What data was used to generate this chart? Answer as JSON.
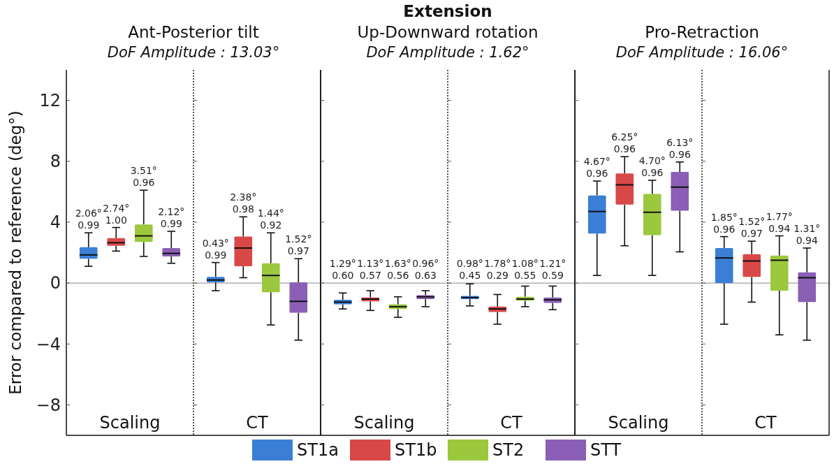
{
  "chart_data": [
    {
      "type": "box",
      "title": "Ant-Posterior tilt",
      "subtitle": "DoF Amplitude : 13.03°",
      "ylabel": "Error compared to reference (deg°)",
      "annotations": [
        "Extension"
      ],
      "categories": [
        "Scaling"
      ],
      "ylim": [
        -10,
        14
      ],
      "yticks": [
        -8,
        -4,
        0,
        4,
        8,
        12
      ],
      "grid": false,
      "legend": "bottom",
      "ref_lines": [
        {
          "axis": "y",
          "value": 0,
          "color": "#a0a0a0"
        }
      ],
      "series": [
        {
          "name": "ST1a",
          "color": "#3a7fd5",
          "value_labels": [
            "2.06°\n0.99"
          ],
          "boxes": [
            {
              "low": 1.1,
              "q1": 1.6,
              "median": 1.85,
              "q3": 2.35,
              "high": 3.3
            }
          ]
        },
        {
          "name": "ST1b",
          "color": "#d94848",
          "value_labels": [
            "2.74°\n1.00"
          ],
          "boxes": [
            {
              "low": 2.1,
              "q1": 2.45,
              "median": 2.65,
              "q3": 2.95,
              "high": 3.65
            }
          ]
        },
        {
          "name": "ST2",
          "color": "#9bc83c",
          "value_labels": [
            "3.51°\n0.96"
          ],
          "boxes": [
            {
              "low": 1.75,
              "q1": 2.7,
              "median": 3.1,
              "q3": 3.85,
              "high": 6.1
            }
          ]
        },
        {
          "name": "STT",
          "color": "#8a5fb5",
          "value_labels": [
            "2.12°\n0.99"
          ],
          "boxes": [
            {
              "low": 1.3,
              "q1": 1.75,
              "median": 1.95,
              "q3": 2.3,
              "high": 3.4
            }
          ]
        }
      ]
    },
    {
      "type": "box",
      "categories": [
        "CT"
      ],
      "ylim": [
        -10,
        14
      ],
      "yticks": [
        -8,
        -4,
        0,
        4,
        8,
        12
      ],
      "tick_labels": "x",
      "grid": false,
      "ref_lines": [
        {
          "axis": "y",
          "value": 0,
          "color": "#a0a0a0"
        }
      ],
      "series": [
        {
          "color": "#3a7fd5",
          "value_labels": [
            "0.43°\n0.99"
          ],
          "boxes": [
            {
              "low": -0.5,
              "q1": 0.05,
              "median": 0.2,
              "q3": 0.4,
              "high": 1.35
            }
          ]
        },
        {
          "color": "#d94848",
          "value_labels": [
            "2.38°\n0.98"
          ],
          "boxes": [
            {
              "low": 0.35,
              "q1": 1.1,
              "median": 2.3,
              "q3": 3.05,
              "high": 4.35
            }
          ]
        },
        {
          "color": "#9bc83c",
          "value_labels": [
            "1.44°\n0.92"
          ],
          "boxes": [
            {
              "low": -2.75,
              "q1": -0.6,
              "median": 0.5,
              "q3": 1.3,
              "high": 3.3
            }
          ]
        },
        {
          "color": "#8a5fb5",
          "value_labels": [
            "1.52°\n0.97"
          ],
          "boxes": [
            {
              "low": -3.75,
              "q1": -1.95,
              "median": -1.2,
              "q3": 0.05,
              "high": 1.6
            }
          ]
        }
      ]
    },
    {
      "type": "box",
      "title": "Up-Downward rotation",
      "subtitle": "DoF Amplitude : 1.62°",
      "categories": [
        "Scaling"
      ],
      "ylim": [
        -10,
        14
      ],
      "yticks": [
        -8,
        -4,
        0,
        4,
        8,
        12
      ],
      "tick_labels": "x",
      "grid": false,
      "ref_lines": [
        {
          "axis": "y",
          "value": 0,
          "color": "#a0a0a0"
        }
      ],
      "series": [
        {
          "color": "#3a7fd5",
          "value_labels": [
            "1.29°\n0.60"
          ],
          "boxes": [
            {
              "low": -1.7,
              "q1": -1.4,
              "median": -1.25,
              "q3": -1.1,
              "high": -0.65
            }
          ]
        },
        {
          "color": "#d94848",
          "value_labels": [
            "1.13°\n0.57"
          ],
          "boxes": [
            {
              "low": -1.8,
              "q1": -1.2,
              "median": -1.05,
              "q3": -0.95,
              "high": -0.5
            }
          ]
        },
        {
          "color": "#9bc83c",
          "value_labels": [
            "1.63°\n0.56"
          ],
          "boxes": [
            {
              "low": -2.25,
              "q1": -1.7,
              "median": -1.55,
              "q3": -1.4,
              "high": -0.9
            }
          ]
        },
        {
          "color": "#8a5fb5",
          "value_labels": [
            "0.96°\n0.63"
          ],
          "boxes": [
            {
              "low": -1.55,
              "q1": -1.05,
              "median": -0.9,
              "q3": -0.8,
              "high": -0.5
            }
          ]
        }
      ]
    },
    {
      "type": "box",
      "categories": [
        "CT"
      ],
      "ylim": [
        -10,
        14
      ],
      "yticks": [
        -8,
        -4,
        0,
        4,
        8,
        12
      ],
      "tick_labels": "x",
      "grid": false,
      "ref_lines": [
        {
          "axis": "y",
          "value": 0,
          "color": "#a0a0a0"
        }
      ],
      "series": [
        {
          "color": "#3a7fd5",
          "value_labels": [
            "0.98°\n0.45"
          ],
          "boxes": [
            {
              "low": -1.5,
              "q1": -1.05,
              "median": -0.95,
              "q3": -0.85,
              "high": -0.05
            }
          ]
        },
        {
          "color": "#d94848",
          "value_labels": [
            "1.78°\n0.29"
          ],
          "boxes": [
            {
              "low": -2.7,
              "q1": -1.9,
              "median": -1.7,
              "q3": -1.55,
              "high": -0.75
            }
          ]
        },
        {
          "color": "#9bc83c",
          "value_labels": [
            "1.08°\n0.55"
          ],
          "boxes": [
            {
              "low": -1.55,
              "q1": -1.15,
              "median": -1.05,
              "q3": -0.9,
              "high": -0.2
            }
          ]
        },
        {
          "color": "#8a5fb5",
          "value_labels": [
            "1.21°\n0.59"
          ],
          "boxes": [
            {
              "low": -1.75,
              "q1": -1.3,
              "median": -1.1,
              "q3": -0.95,
              "high": -0.2
            }
          ]
        }
      ]
    },
    {
      "type": "box",
      "title": "Pro-Retraction",
      "subtitle": "DoF Amplitude : 16.06°",
      "categories": [
        "Scaling"
      ],
      "ylim": [
        -10,
        14
      ],
      "yticks": [
        -8,
        -4,
        0,
        4,
        8,
        12
      ],
      "tick_labels": "x",
      "grid": false,
      "ref_lines": [
        {
          "axis": "y",
          "value": 0,
          "color": "#a0a0a0"
        }
      ],
      "series": [
        {
          "color": "#3a7fd5",
          "value_labels": [
            "4.67°\n0.96"
          ],
          "boxes": [
            {
              "low": 0.5,
              "q1": 3.25,
              "median": 4.7,
              "q3": 5.75,
              "high": 6.7
            }
          ]
        },
        {
          "color": "#d94848",
          "value_labels": [
            "6.25°\n0.96"
          ],
          "boxes": [
            {
              "low": 2.45,
              "q1": 5.15,
              "median": 6.45,
              "q3": 7.2,
              "high": 8.3
            }
          ]
        },
        {
          "color": "#9bc83c",
          "value_labels": [
            "4.70°\n0.96"
          ],
          "boxes": [
            {
              "low": 0.5,
              "q1": 3.15,
              "median": 4.65,
              "q3": 5.85,
              "high": 6.75
            }
          ]
        },
        {
          "color": "#8a5fb5",
          "value_labels": [
            "6.13°\n0.96"
          ],
          "boxes": [
            {
              "low": 2.05,
              "q1": 4.75,
              "median": 6.3,
              "q3": 7.3,
              "high": 7.95
            }
          ]
        }
      ]
    },
    {
      "type": "box",
      "categories": [
        "CT"
      ],
      "ylim": [
        -10,
        14
      ],
      "yticks": [
        -8,
        -4,
        0,
        4,
        8,
        12
      ],
      "tick_labels": "x",
      "grid": false,
      "ref_lines": [
        {
          "axis": "y",
          "value": 0,
          "color": "#a0a0a0"
        }
      ],
      "series": [
        {
          "color": "#3a7fd5",
          "value_labels": [
            "1.85°\n0.96"
          ],
          "boxes": [
            {
              "low": -2.7,
              "q1": 0,
              "median": 1.65,
              "q3": 2.3,
              "high": 3.05
            }
          ]
        },
        {
          "color": "#d94848",
          "value_labels": [
            "1.52°\n0.97"
          ],
          "boxes": [
            {
              "low": -1.25,
              "q1": 0.4,
              "median": 1.45,
              "q3": 1.9,
              "high": 2.75
            }
          ]
        },
        {
          "color": "#9bc83c",
          "value_labels": [
            "1.77°\n0.94"
          ],
          "boxes": [
            {
              "low": -3.4,
              "q1": -0.5,
              "median": 1.5,
              "q3": 1.8,
              "high": 3.1
            }
          ]
        },
        {
          "color": "#8a5fb5",
          "value_labels": [
            "1.31°\n0.94"
          ],
          "boxes": [
            {
              "low": -3.75,
              "q1": -1.25,
              "median": 0.35,
              "q3": 0.7,
              "high": 2.3
            }
          ]
        }
      ]
    }
  ]
}
